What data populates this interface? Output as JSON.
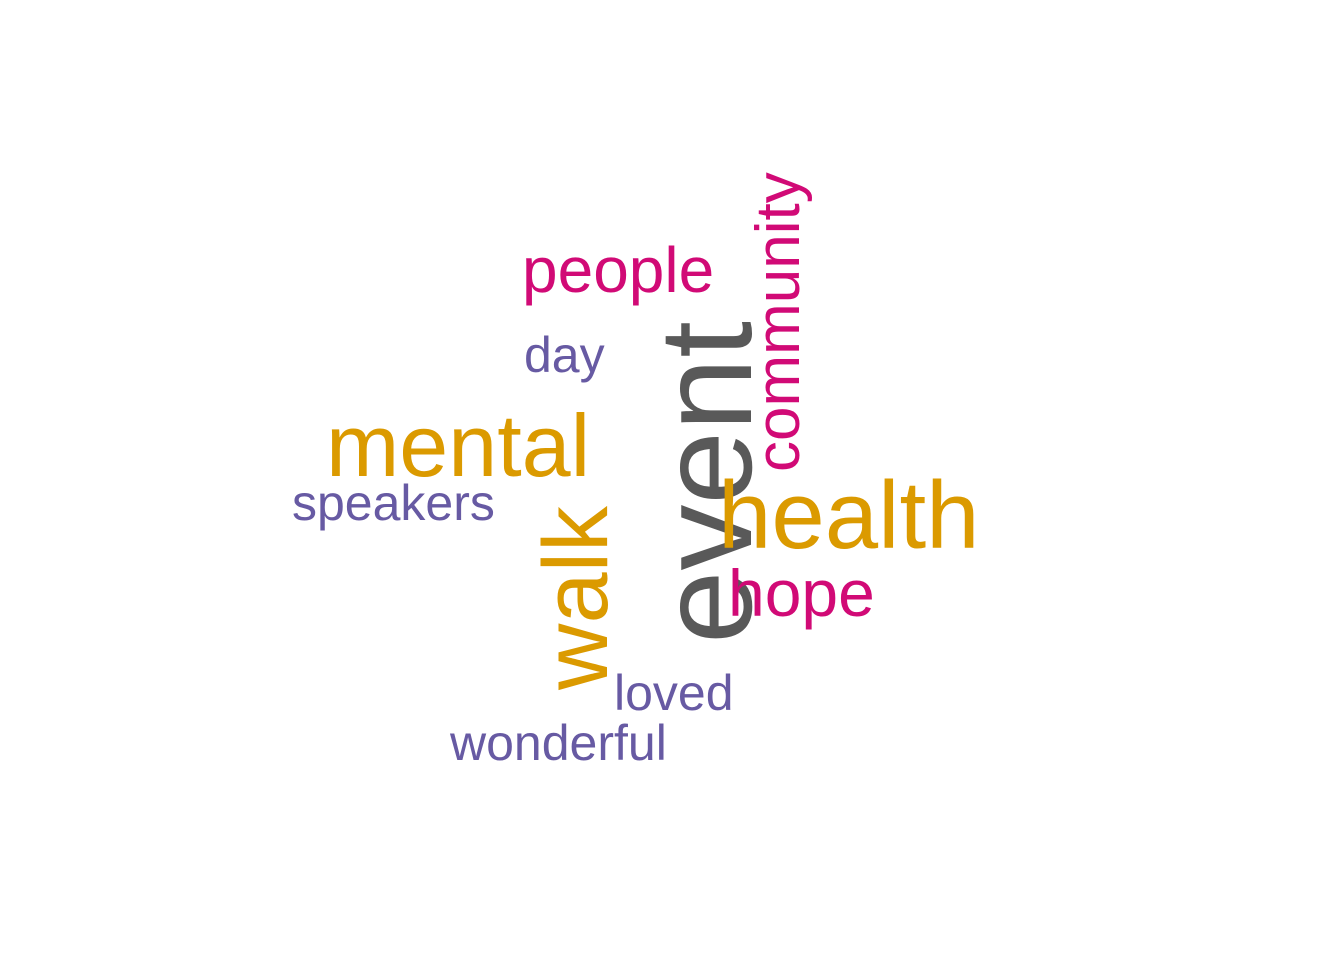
{
  "colors": {
    "gray": "#595959",
    "gold": "#DB9A00",
    "magenta": "#D10A76",
    "purple": "#675AA3"
  },
  "words": {
    "event": {
      "text": "event",
      "color": "#595959"
    },
    "health": {
      "text": "health",
      "color": "#DB9A00"
    },
    "mental": {
      "text": "mental",
      "color": "#DB9A00"
    },
    "walk": {
      "text": "walk",
      "color": "#DB9A00"
    },
    "community": {
      "text": "community",
      "color": "#D10A76"
    },
    "people": {
      "text": "people",
      "color": "#D10A76"
    },
    "hope": {
      "text": "hope",
      "color": "#D10A76"
    },
    "day": {
      "text": "day",
      "color": "#675AA3"
    },
    "speakers": {
      "text": "speakers",
      "color": "#675AA3"
    },
    "loved": {
      "text": "loved",
      "color": "#675AA3"
    },
    "wonderful": {
      "text": "wonderful",
      "color": "#675AA3"
    }
  }
}
